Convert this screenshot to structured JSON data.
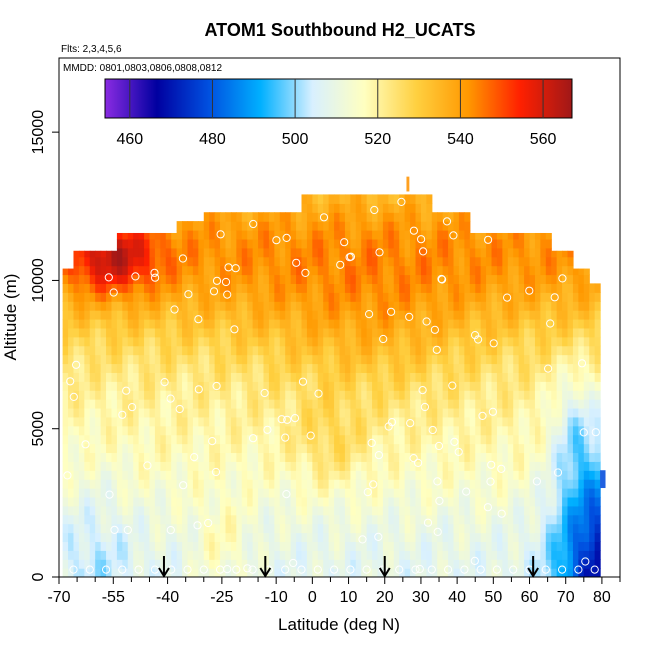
{
  "chart_data": {
    "type": "heatmap",
    "title": "ATOM1 Southbound H2_UCATS",
    "subtitle_flights": "Flts: 2,3,4,5,6",
    "subtitle_dates": "MMDD: 0801,0803,0806,0808,0812",
    "xlabel": "Latitude (deg N)",
    "ylabel": "Altitude (m)",
    "xlim": [
      -70,
      85
    ],
    "ylim": [
      0,
      17500
    ],
    "x_ticks": [
      -70,
      -55,
      -40,
      -25,
      -10,
      0,
      10,
      20,
      30,
      40,
      50,
      60,
      70,
      80
    ],
    "x_tick_labels": [
      "-70",
      "-55",
      "-40",
      "-25",
      "-10",
      "0",
      "10",
      "20",
      "30",
      "40",
      "50",
      "60",
      "70",
      "80"
    ],
    "y_ticks": [
      0,
      5000,
      10000,
      15000
    ],
    "y_tick_labels": [
      "0",
      "5000",
      "10000",
      "15000"
    ],
    "colorbar": {
      "min": 454,
      "max": 567,
      "ticks": [
        460,
        480,
        500,
        520,
        540,
        560
      ],
      "tick_labels": [
        "460",
        "480",
        "500",
        "520",
        "540",
        "560"
      ],
      "colors": [
        "#8a2be2",
        "#0000a0",
        "#0050e0",
        "#00b0ff",
        "#d8f0ff",
        "#ffffc0",
        "#ffd040",
        "#ff9800",
        "#ff2000",
        "#a01818"
      ]
    },
    "arrows_latitude": [
      -41,
      -13,
      20,
      61
    ],
    "grid": false,
    "legend": "top-colorbar"
  }
}
